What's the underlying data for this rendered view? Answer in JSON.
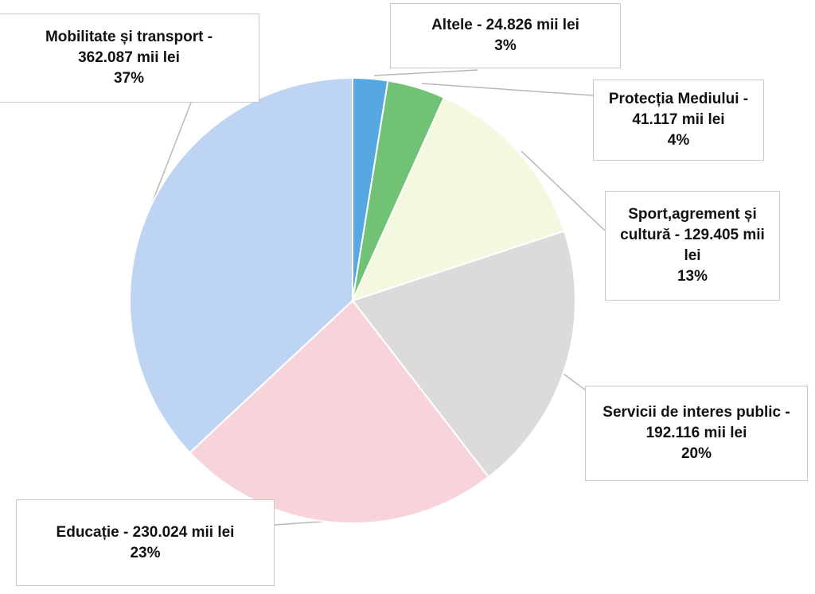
{
  "chart_data": {
    "type": "pie",
    "title": "",
    "unit": "mii lei",
    "start": "top",
    "direction": "clockwise",
    "slices": [
      {
        "label": "Altele - 24.826 mii lei",
        "value": 24826,
        "percent": "3%",
        "color": "#55a8e2"
      },
      {
        "label": "Protecția Mediului - 41.117 mii lei",
        "value": 41117,
        "percent": "4%",
        "color": "#72c276"
      },
      {
        "label": "Sport,agrement și cultură - 129.405 mii lei",
        "value": 129405,
        "percent": "13%",
        "color": "#f3f8de"
      },
      {
        "label": "Servicii de interes public - 192.116 mii lei",
        "value": 192116,
        "percent": "20%",
        "color": "#dddadb"
      },
      {
        "label": "Educație - 230.024 mii lei",
        "value": 230024,
        "percent": "23%",
        "color": "#f7d3da"
      },
      {
        "label": "Mobilitate și transport - 362.087 mii lei",
        "value": 362087,
        "percent": "37%",
        "color": "#bdd4f3"
      }
    ]
  }
}
